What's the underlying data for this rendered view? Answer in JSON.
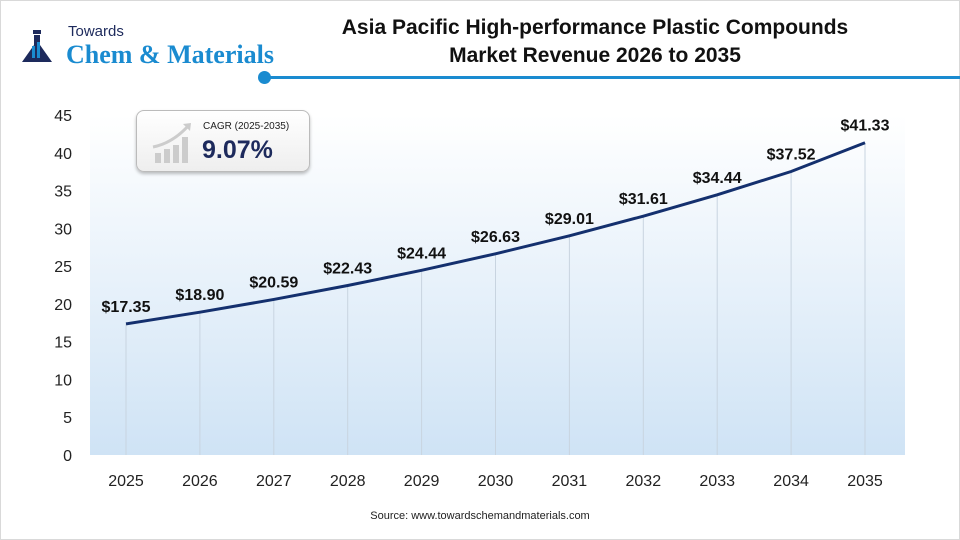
{
  "logo": {
    "small": "Towards",
    "big": "Chem & Materials"
  },
  "title_lines": [
    "Asia Pacific High-performance Plastic Compounds",
    "Market Revenue 2026 to 2035"
  ],
  "cagr": {
    "label": "CAGR (2025-2035)",
    "value": "9.07%"
  },
  "source": "Source: www.towardschemandmaterials.com",
  "colors": {
    "line": "#14306e",
    "accent": "#1a8bd0",
    "plot_bg_bottom": "#cfe3f5"
  },
  "chart_data": {
    "type": "line",
    "categories": [
      "2025",
      "2026",
      "2027",
      "2028",
      "2029",
      "2030",
      "2031",
      "2032",
      "2033",
      "2034",
      "2035"
    ],
    "values": [
      17.35,
      18.9,
      20.59,
      22.43,
      24.44,
      26.63,
      29.01,
      31.61,
      34.44,
      37.52,
      41.33
    ],
    "data_labels": [
      "$17.35",
      "$18.90",
      "$20.59",
      "$22.43",
      "$24.44",
      "$26.63",
      "$29.01",
      "$31.61",
      "$34.44",
      "$37.52",
      "$41.33"
    ],
    "ylim": [
      0,
      45
    ],
    "yticks": [
      0,
      5,
      10,
      15,
      20,
      25,
      30,
      35,
      40,
      45
    ],
    "grid": "vertical lines at each category",
    "legend": "none"
  }
}
